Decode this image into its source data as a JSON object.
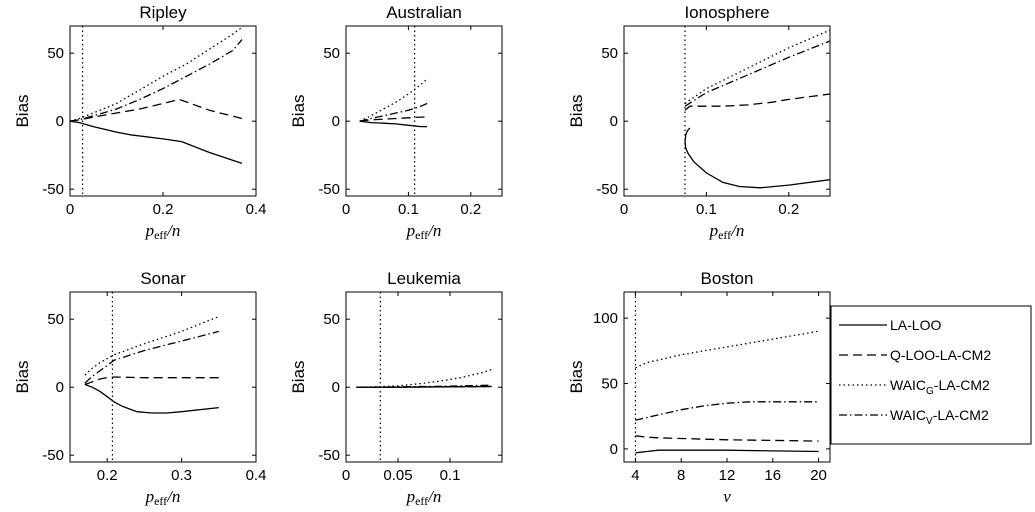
{
  "chart_data": [
    {
      "type": "line",
      "title": "Ripley",
      "ylabel": "Bias",
      "xlabel_main": "p",
      "xlabel_sub": "eff",
      "xlabel_tail": "/n",
      "xlim": [
        0,
        0.4
      ],
      "ylim": [
        -55,
        70
      ],
      "xticks": [
        0,
        0.2,
        0.4
      ],
      "xtick_labels": [
        "0",
        "0.2",
        "0.4"
      ],
      "yticks": [
        -50,
        0,
        50
      ],
      "ytick_labels": [
        "-50",
        "0",
        "50"
      ],
      "vline": 0.027,
      "series": [
        {
          "name": "LA-LOO",
          "x": [
            0.0,
            0.02,
            0.05,
            0.1,
            0.13,
            0.2,
            0.24,
            0.3,
            0.37
          ],
          "y": [
            0,
            -1,
            -4,
            -8,
            -10,
            -13,
            -15,
            -23,
            -31
          ]
        },
        {
          "name": "Q-LOO-LA-CM2",
          "x": [
            0.0,
            0.02,
            0.05,
            0.1,
            0.15,
            0.2,
            0.235,
            0.3,
            0.37
          ],
          "y": [
            0,
            1,
            3,
            6,
            9,
            13,
            16,
            8,
            2
          ]
        },
        {
          "name": "WAIC_G-LA-CM2",
          "x": [
            0.0,
            0.02,
            0.05,
            0.1,
            0.15,
            0.2,
            0.25,
            0.3,
            0.35,
            0.37
          ],
          "y": [
            0,
            2,
            6,
            13,
            23,
            33,
            42,
            53,
            64,
            69
          ]
        },
        {
          "name": "WAIC_V-LA-CM2",
          "x": [
            0.0,
            0.02,
            0.05,
            0.1,
            0.15,
            0.2,
            0.25,
            0.3,
            0.35,
            0.37
          ],
          "y": [
            0,
            1,
            4,
            9,
            16,
            24,
            33,
            42,
            52,
            60
          ]
        }
      ]
    },
    {
      "type": "line",
      "title": "Australian",
      "ylabel": "Bias",
      "xlabel_main": "p",
      "xlabel_sub": "eff",
      "xlabel_tail": "/n",
      "xlim": [
        0,
        0.25
      ],
      "ylim": [
        -55,
        70
      ],
      "xticks": [
        0,
        0.1,
        0.2
      ],
      "xtick_labels": [
        "0",
        "0.1",
        "0.2"
      ],
      "yticks": [
        -50,
        0,
        50
      ],
      "ytick_labels": [
        "-50",
        "0",
        "50"
      ],
      "vline": 0.11,
      "series": [
        {
          "name": "LA-LOO",
          "x": [
            0.022,
            0.04,
            0.06,
            0.08,
            0.1,
            0.12,
            0.13
          ],
          "y": [
            0,
            -1,
            -1.5,
            -2,
            -3,
            -4,
            -4
          ]
        },
        {
          "name": "Q-LOO-LA-CM2",
          "x": [
            0.022,
            0.04,
            0.06,
            0.08,
            0.1,
            0.12,
            0.13
          ],
          "y": [
            0,
            1,
            1.5,
            2,
            2.5,
            3,
            3
          ]
        },
        {
          "name": "WAIC_G-LA-CM2",
          "x": [
            0.022,
            0.04,
            0.06,
            0.08,
            0.1,
            0.12,
            0.13
          ],
          "y": [
            0,
            4,
            9,
            14,
            20,
            27,
            31
          ]
        },
        {
          "name": "WAIC_V-LA-CM2",
          "x": [
            0.022,
            0.04,
            0.06,
            0.08,
            0.1,
            0.12,
            0.13
          ],
          "y": [
            0,
            2,
            4,
            6,
            8,
            11,
            13
          ]
        }
      ]
    },
    {
      "type": "line",
      "title": "Ionosphere",
      "ylabel": "Bias",
      "xlabel_main": "p",
      "xlabel_sub": "eff",
      "xlabel_tail": "/n",
      "xlim": [
        0,
        0.25
      ],
      "ylim": [
        -55,
        70
      ],
      "xticks": [
        0,
        0.1,
        0.2
      ],
      "xtick_labels": [
        "0",
        "0.1",
        "0.2"
      ],
      "yticks": [
        -50,
        0,
        50
      ],
      "ytick_labels": [
        "-50",
        "0",
        "50"
      ],
      "vline": 0.074,
      "series": [
        {
          "name": "LA-LOO",
          "x": [
            0.08,
            0.077,
            0.075,
            0.074,
            0.075,
            0.078,
            0.085,
            0.1,
            0.12,
            0.14,
            0.165,
            0.2,
            0.25
          ],
          "y": [
            -5,
            -7,
            -10,
            -15,
            -20,
            -24,
            -30,
            -38,
            -45,
            -48,
            -49,
            -47,
            -43
          ]
        },
        {
          "name": "Q-LOO-LA-CM2",
          "x": [
            0.074,
            0.08,
            0.1,
            0.12,
            0.15,
            0.18,
            0.2,
            0.25
          ],
          "y": [
            8,
            11,
            11,
            11,
            12,
            14,
            16,
            20
          ]
        },
        {
          "name": "WAIC_G-LA-CM2",
          "x": [
            0.074,
            0.1,
            0.15,
            0.2,
            0.25
          ],
          "y": [
            13,
            24,
            39,
            54,
            67
          ]
        },
        {
          "name": "WAIC_V-LA-CM2",
          "x": [
            0.074,
            0.1,
            0.15,
            0.2,
            0.25
          ],
          "y": [
            11,
            21,
            34,
            47,
            59
          ]
        }
      ]
    },
    {
      "type": "line",
      "title": "Sonar",
      "ylabel": "Bias",
      "xlabel_main": "p",
      "xlabel_sub": "eff",
      "xlabel_tail": "/n",
      "xlim": [
        0.15,
        0.4
      ],
      "ylim": [
        -55,
        70
      ],
      "xticks": [
        0.2,
        0.3,
        0.4
      ],
      "xtick_labels": [
        "0.2",
        "0.3",
        "0.4"
      ],
      "yticks": [
        -50,
        0,
        50
      ],
      "ytick_labels": [
        "-50",
        "0",
        "50"
      ],
      "vline": 0.207,
      "series": [
        {
          "name": "LA-LOO",
          "x": [
            0.17,
            0.18,
            0.19,
            0.2,
            0.21,
            0.22,
            0.24,
            0.26,
            0.28,
            0.3,
            0.35
          ],
          "y": [
            2,
            0,
            -3,
            -7,
            -11,
            -14,
            -18,
            -19,
            -19,
            -18,
            -15
          ]
        },
        {
          "name": "Q-LOO-LA-CM2",
          "x": [
            0.17,
            0.18,
            0.19,
            0.2,
            0.21,
            0.25,
            0.3,
            0.35
          ],
          "y": [
            2,
            4,
            6,
            7,
            7.5,
            7,
            7,
            7
          ]
        },
        {
          "name": "WAIC_G-LA-CM2",
          "x": [
            0.17,
            0.18,
            0.19,
            0.2,
            0.21,
            0.25,
            0.3,
            0.35
          ],
          "y": [
            9,
            14,
            18,
            21,
            24,
            32,
            41,
            52
          ]
        },
        {
          "name": "WAIC_V-LA-CM2",
          "x": [
            0.17,
            0.18,
            0.19,
            0.2,
            0.21,
            0.25,
            0.3,
            0.35
          ],
          "y": [
            3,
            8,
            12,
            16,
            20,
            27,
            34,
            41
          ]
        }
      ]
    },
    {
      "type": "line",
      "title": "Leukemia",
      "ylabel": "Bias",
      "xlabel_main": "p",
      "xlabel_sub": "eff",
      "xlabel_tail": "/n",
      "xlim": [
        0,
        0.15
      ],
      "ylim": [
        -55,
        70
      ],
      "xticks": [
        0,
        0.05,
        0.1
      ],
      "xtick_labels": [
        "0",
        "0.05",
        "0.1"
      ],
      "yticks": [
        -50,
        0,
        50
      ],
      "ytick_labels": [
        "-50",
        "0",
        "50"
      ],
      "vline": 0.033,
      "series": [
        {
          "name": "LA-LOO",
          "x": [
            0.01,
            0.05,
            0.1,
            0.14
          ],
          "y": [
            0,
            0,
            0.3,
            0.5
          ]
        },
        {
          "name": "Q-LOO-LA-CM2",
          "x": [
            0.01,
            0.05,
            0.1,
            0.14
          ],
          "y": [
            0,
            0,
            0.3,
            0.5
          ]
        },
        {
          "name": "WAIC_G-LA-CM2",
          "x": [
            0.01,
            0.03,
            0.05,
            0.07,
            0.09,
            0.11,
            0.13,
            0.14
          ],
          "y": [
            0,
            0.3,
            1,
            2.5,
            4.5,
            7,
            10.5,
            13
          ]
        },
        {
          "name": "WAIC_V-LA-CM2",
          "x": [
            0.01,
            0.05,
            0.1,
            0.14
          ],
          "y": [
            0,
            0.2,
            0.8,
            1.5
          ]
        }
      ]
    },
    {
      "type": "line",
      "title": "Boston",
      "ylabel": "Bias",
      "xlabel_main": "ν",
      "xlabel_sub": "",
      "xlabel_tail": "",
      "xlim": [
        3,
        21
      ],
      "ylim": [
        -10,
        120
      ],
      "xticks": [
        4,
        8,
        12,
        16,
        20
      ],
      "xtick_labels": [
        "4",
        "8",
        "12",
        "16",
        "20"
      ],
      "yticks": [
        0,
        50,
        100
      ],
      "ytick_labels": [
        "0",
        "50",
        "100"
      ],
      "vline": 4,
      "series": [
        {
          "name": "LA-LOO",
          "x": [
            4,
            5,
            6,
            8,
            12,
            16,
            20
          ],
          "y": [
            -3,
            -2,
            -1,
            -1,
            -1,
            -1.5,
            -2
          ]
        },
        {
          "name": "Q-LOO-LA-CM2",
          "x": [
            4,
            5,
            6,
            8,
            12,
            16,
            20
          ],
          "y": [
            10,
            9,
            8.5,
            8,
            7,
            6.5,
            6
          ]
        },
        {
          "name": "WAIC_G-LA-CM2",
          "x": [
            4,
            5,
            6,
            8,
            10,
            12,
            14,
            16,
            18,
            20
          ],
          "y": [
            62,
            66,
            68,
            72,
            75,
            78,
            81,
            84,
            87,
            90
          ]
        },
        {
          "name": "WAIC_V-LA-CM2",
          "x": [
            4,
            5,
            6,
            8,
            10,
            12,
            14,
            16,
            18,
            20
          ],
          "y": [
            22,
            24,
            26,
            30,
            33,
            35,
            36,
            36,
            36,
            36
          ]
        }
      ]
    }
  ],
  "legend": {
    "entries": [
      {
        "series": "LA-LOO",
        "main": "LA-LOO",
        "sub": "",
        "tail": "",
        "dash": "solid"
      },
      {
        "series": "Q-LOO-LA-CM2",
        "main": "Q-LOO-LA-CM2",
        "sub": "",
        "tail": "",
        "dash": "dashed"
      },
      {
        "series": "WAIC_G-LA-CM2",
        "main": "WAIC",
        "sub": "G",
        "tail": "-LA-CM2",
        "dash": "dotted"
      },
      {
        "series": "WAIC_V-LA-CM2",
        "main": "WAIC",
        "sub": "V",
        "tail": "-LA-CM2",
        "dash": "dashdot"
      }
    ]
  },
  "styles": {
    "line_color": "#000000",
    "axis_color": "#000000",
    "background": "#ffffff"
  }
}
